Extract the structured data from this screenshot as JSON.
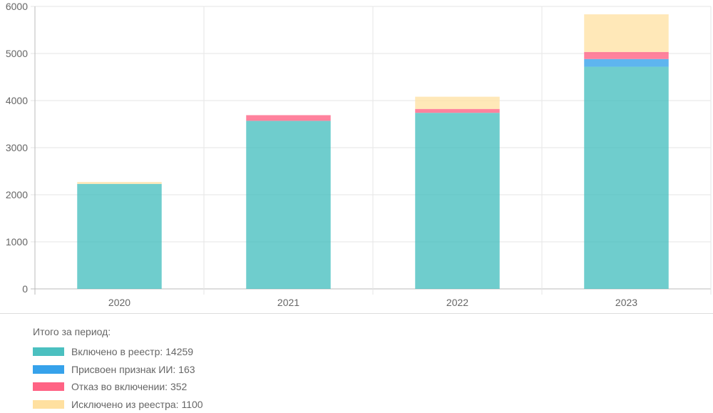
{
  "chart_data": {
    "type": "bar",
    "stacked": true,
    "categories": [
      "2020",
      "2021",
      "2022",
      "2023"
    ],
    "ylim": [
      0,
      6000
    ],
    "yticks": [
      0,
      1000,
      2000,
      3000,
      4000,
      5000,
      6000
    ],
    "grid": true,
    "series": [
      {
        "name": "Включено в реестр",
        "color": "#4bc0c0",
        "values": [
          2230,
          3570,
          3740,
          4719
        ]
      },
      {
        "name": "Присвоен признак ИИ",
        "color": "#36a2eb",
        "values": [
          0,
          0,
          0,
          163
        ]
      },
      {
        "name": "Отказ во включении",
        "color": "#ff6384",
        "values": [
          0,
          120,
          82,
          150
        ]
      },
      {
        "name": "Исключено из реестра",
        "color": "#ffe0a0",
        "values": [
          40,
          0,
          260,
          800
        ]
      }
    ]
  },
  "summary": {
    "title": "Итого за период:",
    "items": [
      {
        "label": "Включено в реестр: 14259",
        "color": "#4bc0c0"
      },
      {
        "label": "Присвоен признак ИИ: 163",
        "color": "#36a2eb"
      },
      {
        "label": "Отказ во включении: 352",
        "color": "#ff6384"
      },
      {
        "label": "Исключено из реестра: 1100",
        "color": "#ffe0a0"
      }
    ]
  }
}
